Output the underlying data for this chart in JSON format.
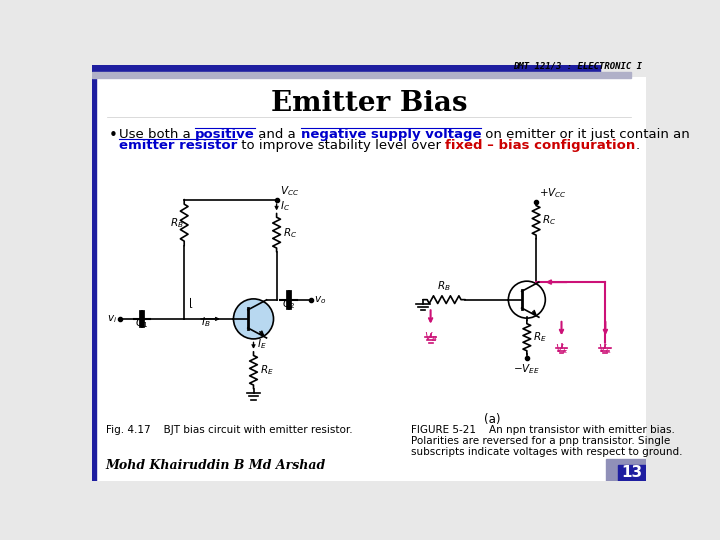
{
  "title": "Emitter Bias",
  "header_text": "DMT 121/3 : ELECTRONIC I",
  "bullet_line1_parts": [
    {
      "text": "Use both a ",
      "color": "#000000",
      "bold": false,
      "underline": false
    },
    {
      "text": "positive",
      "color": "#0000cc",
      "bold": true,
      "underline": true
    },
    {
      "text": " and a ",
      "color": "#000000",
      "bold": false,
      "underline": false
    },
    {
      "text": "negative supply voltage",
      "color": "#0000cc",
      "bold": true,
      "underline": true
    },
    {
      "text": " on emitter or it just contain an",
      "color": "#000000",
      "bold": false,
      "underline": false
    }
  ],
  "bullet_line2_parts": [
    {
      "text": "emitter resistor",
      "color": "#0000cc",
      "bold": true,
      "underline": true
    },
    {
      "text": " to improve stability level over ",
      "color": "#000000",
      "bold": false,
      "underline": false
    },
    {
      "text": "fixed – bias configuration",
      "color": "#cc0000",
      "bold": true,
      "underline": false
    },
    {
      "text": ".",
      "color": "#000000",
      "bold": false,
      "underline": false
    }
  ],
  "fig_caption": "Fig. 4.17    BJT bias circuit with emitter resistor.",
  "figure_caption2_line1": "FIGURE 5-21    An npn transistor with emitter bias.",
  "figure_caption2_line2": "Polarities are reversed for a pnp transistor. Single",
  "figure_caption2_line3": "subscripts indicate voltages with respect to ground.",
  "author": "Mohd Khairuddin B Md Arshad",
  "page_number": "13",
  "header_bar_color": "#1e1ea0",
  "header_bar_color2": "#b0b0c8",
  "left_bar_color": "#1e1ea0",
  "slide_bg": "#e8e8e8"
}
